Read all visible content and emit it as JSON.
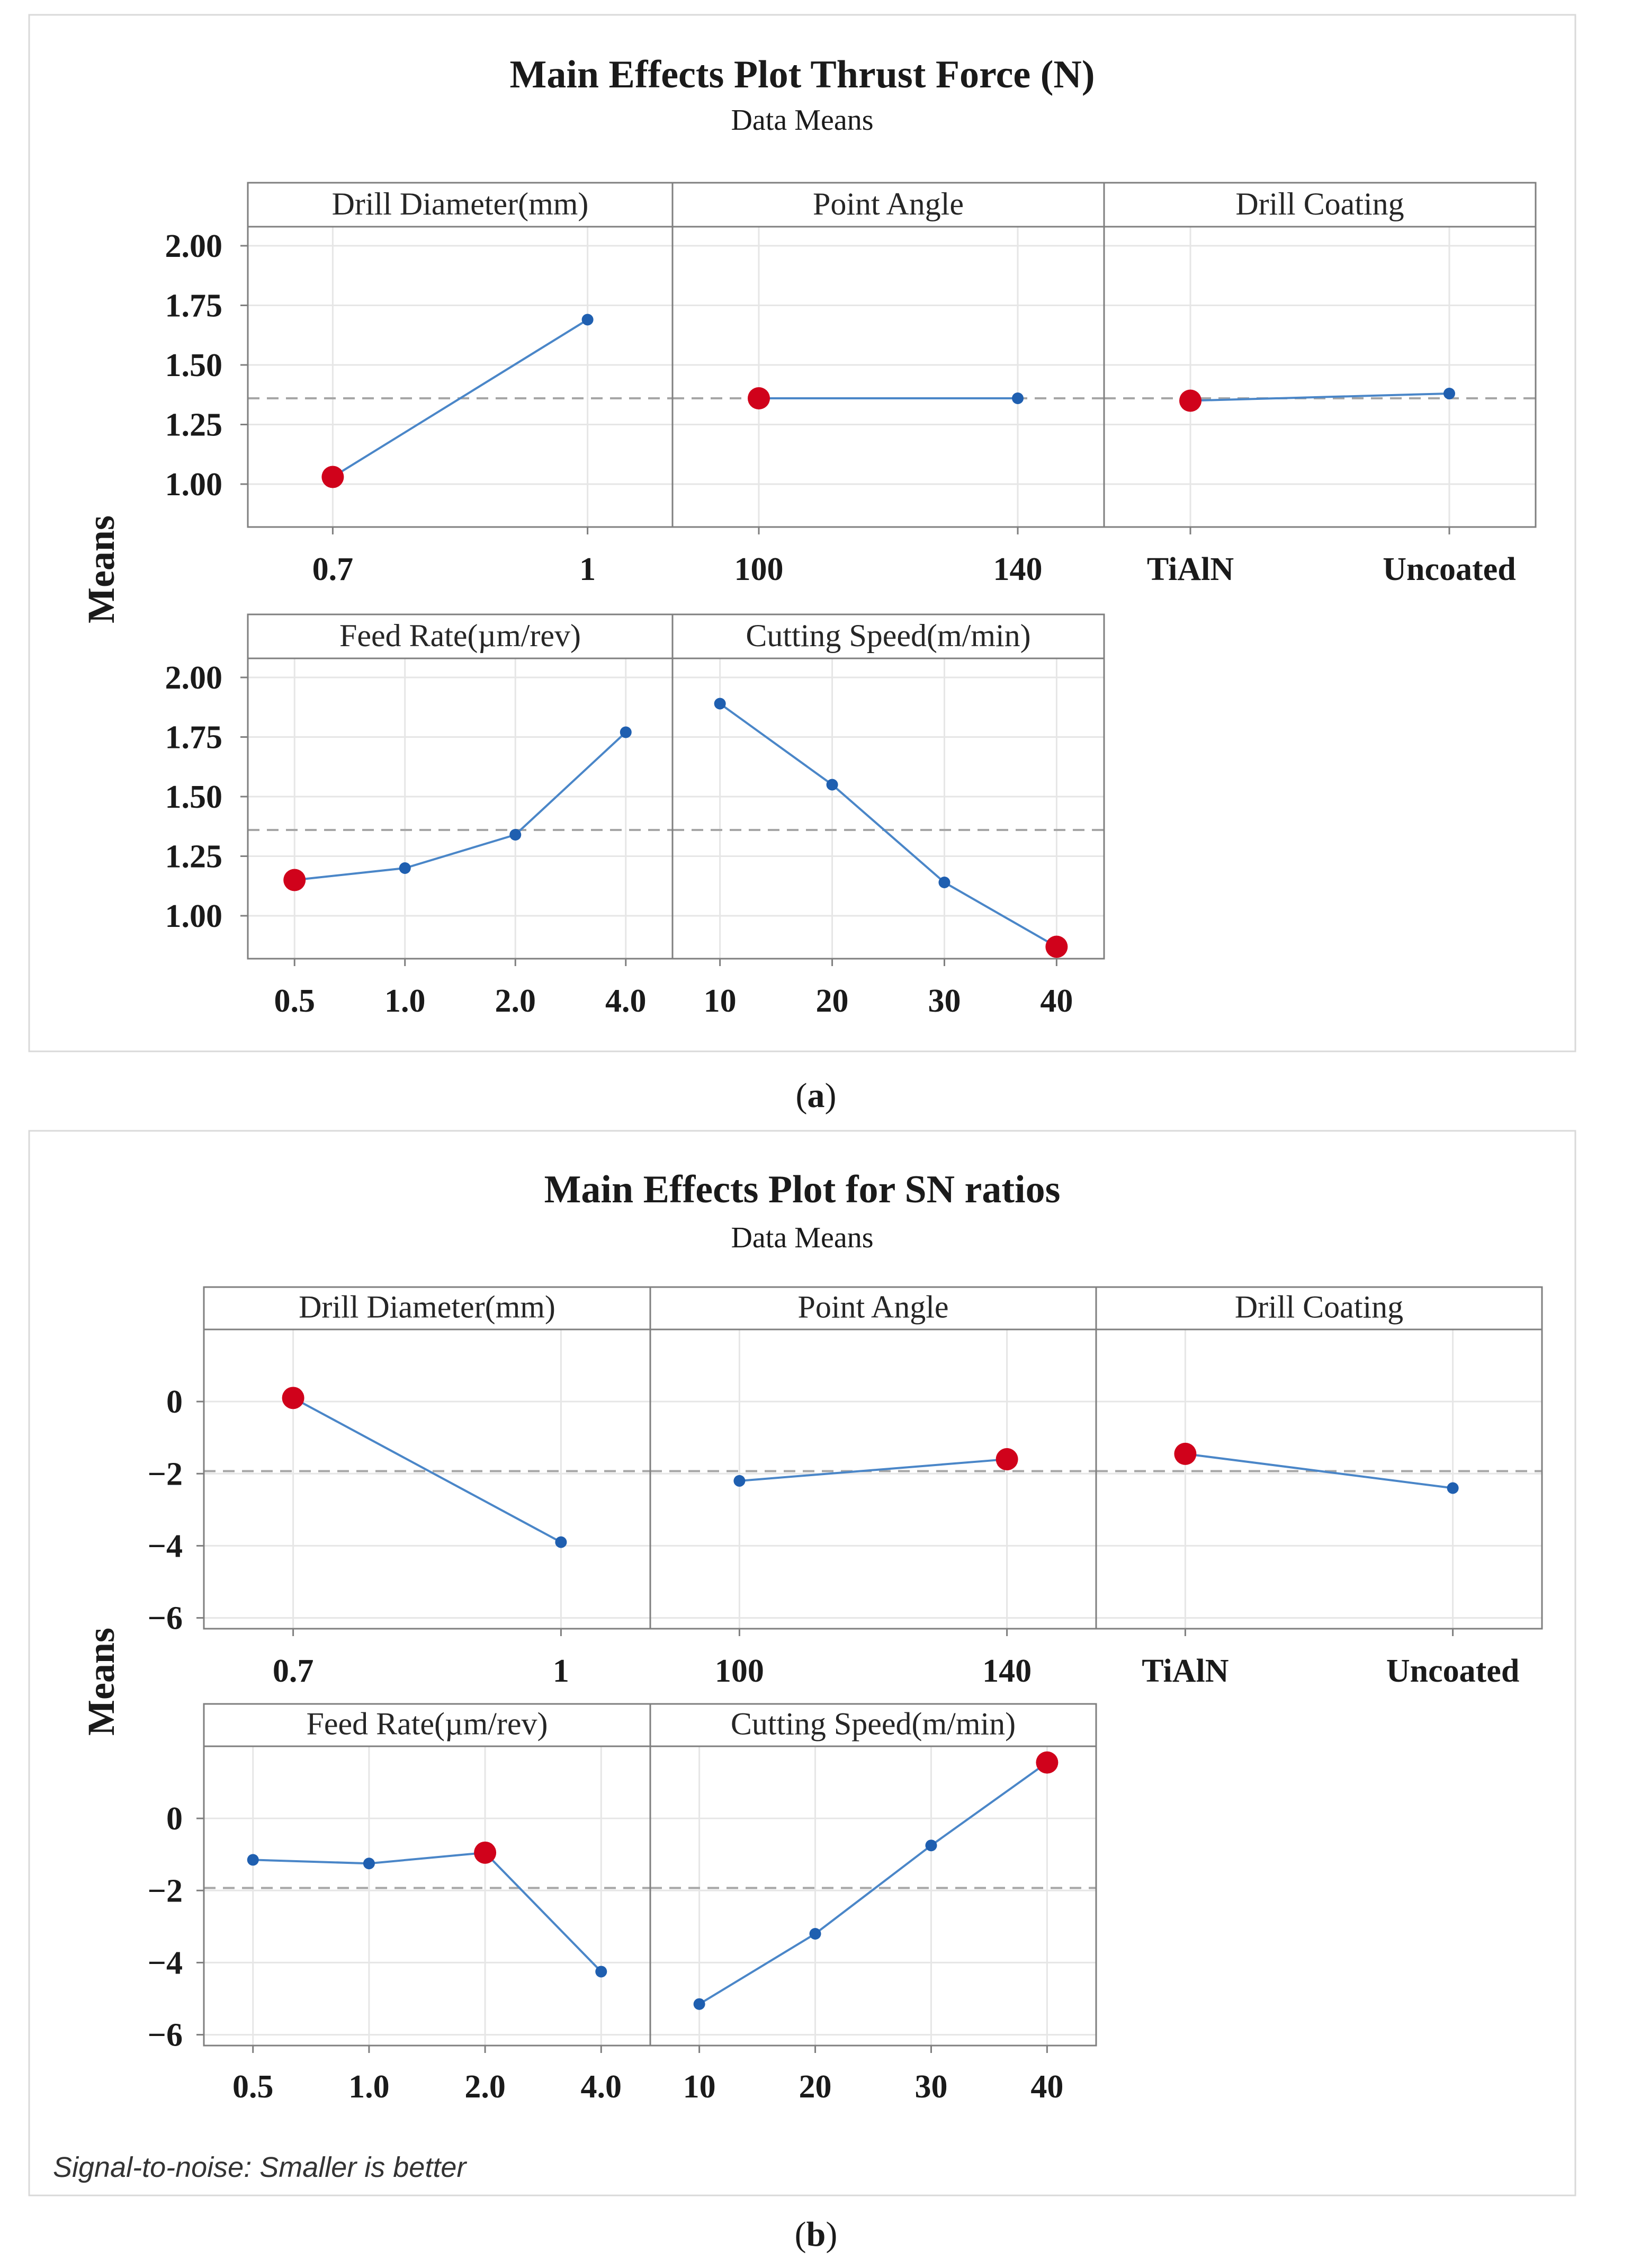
{
  "colors": {
    "line": "#4a86c8",
    "point": "#1f5fb0",
    "highlight": "#d0021b",
    "grid": "#e6e6e6",
    "frame": "#7f7f7f",
    "refline": "#a6a6a6"
  },
  "figure_labels": {
    "a": "(a)",
    "b": "(b)",
    "a_letter": "a",
    "b_letter": "b"
  },
  "chart_data": [
    {
      "type": "line",
      "title": "Main Effects Plot Thrust Force (N)",
      "subtitle": "Data Means",
      "ylabel": "Means",
      "ylim": [
        0.82,
        2.08
      ],
      "yticks": [
        1.0,
        1.25,
        1.5,
        1.75,
        2.0
      ],
      "ytick_labels": [
        "1.00",
        "1.25",
        "1.50",
        "1.75",
        "2.00"
      ],
      "grand_mean": 1.36,
      "grid": true,
      "panels": [
        {
          "name": "Drill Diameter(mm)",
          "categories": [
            "0.7",
            "1"
          ],
          "values": [
            1.03,
            1.69
          ],
          "optimal": 0
        },
        {
          "name": "Point Angle",
          "categories": [
            "100",
            "140"
          ],
          "values": [
            1.36,
            1.36
          ],
          "optimal": 0
        },
        {
          "name": "Drill Coating",
          "categories": [
            "TiAlN",
            "Uncoated"
          ],
          "values": [
            1.35,
            1.38
          ],
          "optimal": 0
        },
        {
          "name": "Feed Rate(µm/rev)",
          "categories": [
            "0.5",
            "1.0",
            "2.0",
            "4.0"
          ],
          "values": [
            1.15,
            1.2,
            1.34,
            1.77
          ],
          "optimal": 0
        },
        {
          "name": "Cutting Speed(m/min)",
          "categories": [
            "10",
            "20",
            "30",
            "40"
          ],
          "values": [
            1.89,
            1.55,
            1.14,
            0.87
          ],
          "optimal": 3
        }
      ]
    },
    {
      "type": "line",
      "title": "Main Effects Plot for SN ratios",
      "subtitle": "Data Means",
      "ylabel": "Means",
      "ylim": [
        -6.3,
        2.0
      ],
      "yticks": [
        0,
        -2,
        -4,
        -6
      ],
      "ytick_labels": [
        "0",
        "−2",
        "−4",
        "−6"
      ],
      "grand_mean": -1.93,
      "grid": true,
      "note": "Signal-to-noise: Smaller is better",
      "panels": [
        {
          "name": "Drill Diameter(mm)",
          "categories": [
            "0.7",
            "1"
          ],
          "values": [
            0.1,
            -3.9
          ],
          "optimal": 0
        },
        {
          "name": "Point Angle",
          "categories": [
            "100",
            "140"
          ],
          "values": [
            -2.2,
            -1.6
          ],
          "optimal": 1
        },
        {
          "name": "Drill Coating",
          "categories": [
            "TiAlN",
            "Uncoated"
          ],
          "values": [
            -1.45,
            -2.4
          ],
          "optimal": 0
        },
        {
          "name": "Feed Rate(µm/rev)",
          "categories": [
            "0.5",
            "1.0",
            "2.0",
            "4.0"
          ],
          "values": [
            -1.15,
            -1.25,
            -0.95,
            -4.25
          ],
          "optimal": 2
        },
        {
          "name": "Cutting Speed(m/min)",
          "categories": [
            "10",
            "20",
            "30",
            "40"
          ],
          "values": [
            -5.15,
            -3.2,
            -0.75,
            1.55
          ],
          "optimal": 3
        }
      ]
    }
  ]
}
